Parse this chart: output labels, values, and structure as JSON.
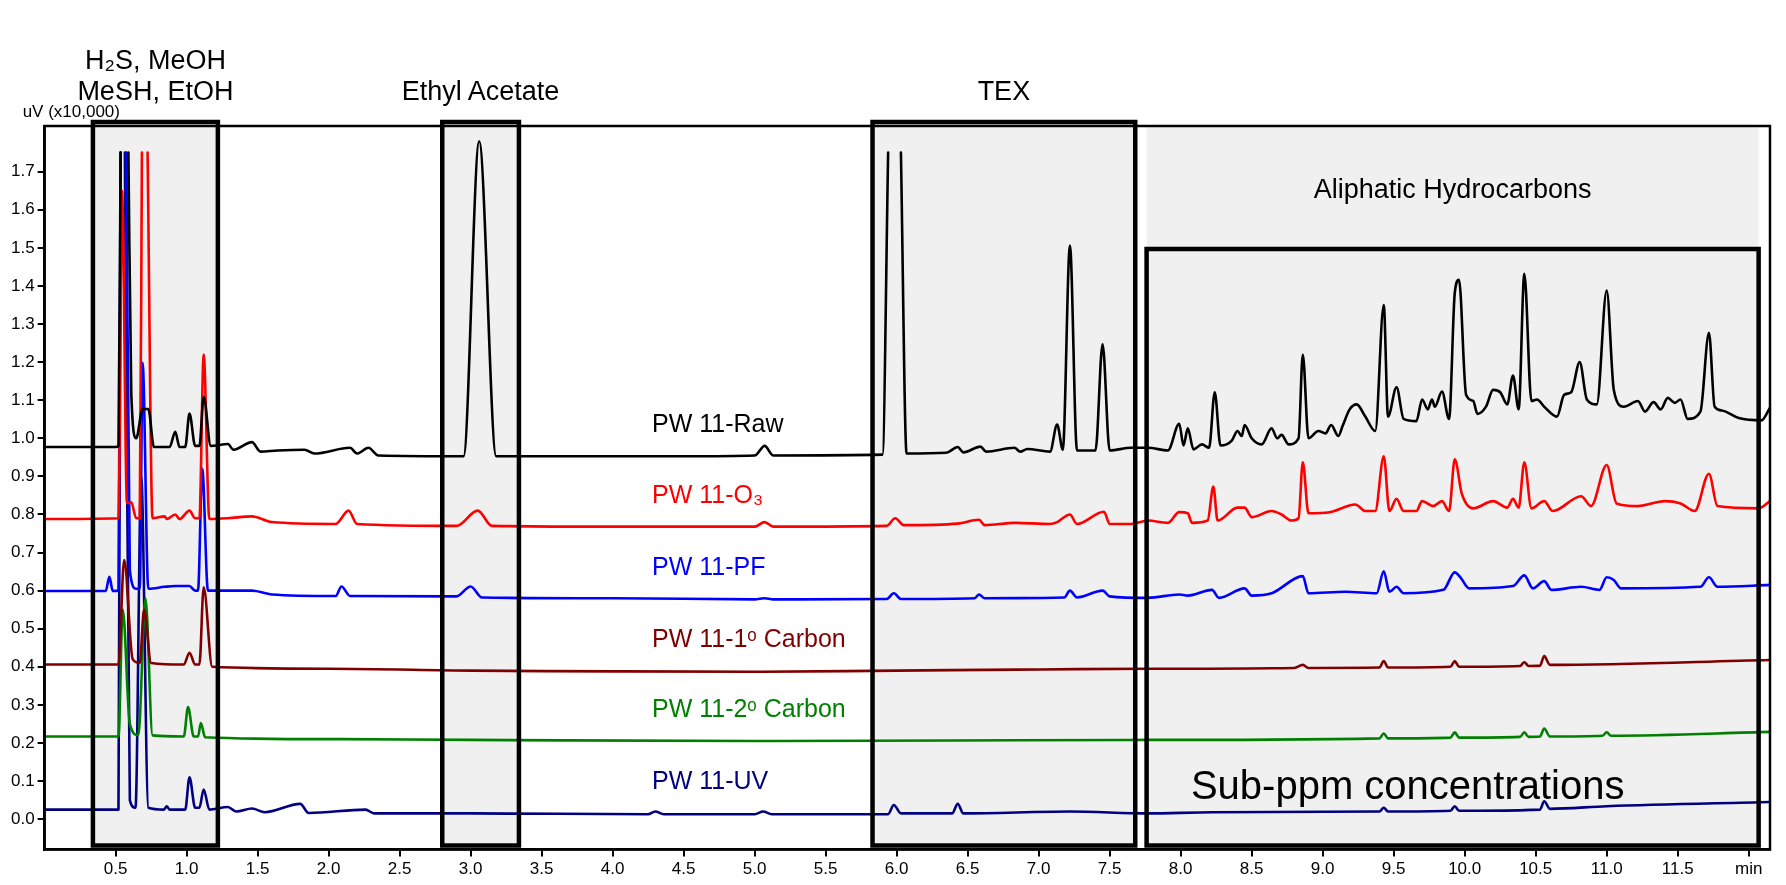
{
  "chart_data": {
    "type": "line",
    "ylabel": "uV (x10,000)",
    "xlim": [
      0,
      12.15
    ],
    "ylim": [
      -0.08,
      1.82
    ],
    "xticks": [
      {
        "value": 0.5,
        "label": "0.5"
      },
      {
        "value": 1,
        "label": "1.0"
      },
      {
        "value": 1.5,
        "label": "1.5"
      },
      {
        "value": 2,
        "label": "2.0"
      },
      {
        "value": 2.5,
        "label": "2.5"
      },
      {
        "value": 3,
        "label": "3.0"
      },
      {
        "value": 3.5,
        "label": "3.5"
      },
      {
        "value": 4,
        "label": "4.0"
      },
      {
        "value": 4.5,
        "label": "4.5"
      },
      {
        "value": 5,
        "label": "5.0"
      },
      {
        "value": 5.5,
        "label": "5.5"
      },
      {
        "value": 6,
        "label": "6.0"
      },
      {
        "value": 6.5,
        "label": "6.5"
      },
      {
        "value": 7,
        "label": "7.0"
      },
      {
        "value": 7.5,
        "label": "7.5"
      },
      {
        "value": 8,
        "label": "8.0"
      },
      {
        "value": 8.5,
        "label": "8.5"
      },
      {
        "value": 9,
        "label": "9.0"
      },
      {
        "value": 9.5,
        "label": "9.5"
      },
      {
        "value": 10,
        "label": "10.0"
      },
      {
        "value": 10.5,
        "label": "10.5"
      },
      {
        "value": 11,
        "label": "11.0"
      },
      {
        "value": 11.5,
        "label": "11.5"
      },
      {
        "value": 12,
        "label": "min"
      }
    ],
    "yticks": [
      {
        "value": 0,
        "label": "0.0"
      },
      {
        "value": 0.1,
        "label": "0.1"
      },
      {
        "value": 0.2,
        "label": "0.2"
      },
      {
        "value": 0.3,
        "label": "0.3"
      },
      {
        "value": 0.4,
        "label": "0.4"
      },
      {
        "value": 0.5,
        "label": "0.5"
      },
      {
        "value": 0.6,
        "label": "0.6"
      },
      {
        "value": 0.7,
        "label": "0.7"
      },
      {
        "value": 0.8,
        "label": "0.8"
      },
      {
        "value": 0.9,
        "label": "0.9"
      },
      {
        "value": 1,
        "label": "1.0"
      },
      {
        "value": 1.1,
        "label": "1.1"
      },
      {
        "value": 1.2,
        "label": "1.2"
      },
      {
        "value": 1.3,
        "label": "1.3"
      },
      {
        "value": 1.4,
        "label": "1.4"
      },
      {
        "value": 1.5,
        "label": "1.5"
      },
      {
        "value": 1.6,
        "label": "1.6"
      },
      {
        "value": 1.7,
        "label": "1.7"
      }
    ],
    "grid": false,
    "legend": false,
    "marker": "none",
    "line_style": "solid",
    "bands": [
      {
        "axis": "x",
        "from": 0.34,
        "to": 1.22,
        "label": "H₂S, MeOH\nMeSH, EtOH",
        "color": "#000000"
      },
      {
        "axis": "x",
        "from": 2.8,
        "to": 3.34,
        "label": "Ethyl Acetate",
        "color": "#000000"
      },
      {
        "axis": "x",
        "from": 5.83,
        "to": 7.68,
        "label": "TEX",
        "color": "#000000"
      },
      {
        "axis": "x",
        "from": 7.76,
        "to": 12.07,
        "label": "Aliphatic Hydrocarbons",
        "color": "#000000"
      }
    ],
    "annotations": [
      "Sub-ppm concentrations"
    ],
    "series": [
      {
        "name": "PW 11-Raw",
        "color": "#000000",
        "x": [
          0,
          0.5,
          0.52,
          0.535,
          0.56,
          0.59,
          0.61,
          0.645,
          0.69,
          0.73,
          0.77,
          0.88,
          0.92,
          0.95,
          0.99,
          1.02,
          1.06,
          1.09,
          1.12,
          1.17,
          1.29,
          1.33,
          1.46,
          1.52,
          1.64,
          1.83,
          1.9,
          2.15,
          2.2,
          2.28,
          2.35,
          2.95,
          3.06,
          3.18,
          3.5,
          4,
          4.5,
          5,
          5.07,
          5.13,
          5.9,
          5.94,
          5.985,
          6.03,
          6.07,
          6.35,
          6.43,
          6.47,
          6.59,
          6.63,
          6.83,
          6.87,
          6.92,
          7.08,
          7.13,
          7.17,
          7.22,
          7.27,
          7.4,
          7.45,
          7.5,
          7.65,
          7.77,
          7.91,
          7.99,
          8.02,
          8.05,
          8.09,
          8.15,
          8.2,
          8.24,
          8.28,
          8.36,
          8.4,
          8.43,
          8.45,
          8.5,
          8.57,
          8.64,
          8.68,
          8.71,
          8.76,
          8.83,
          8.86,
          8.9,
          8.97,
          9.02,
          9.06,
          9.11,
          9.14,
          9.19,
          9.24,
          9.3,
          9.37,
          9.43,
          9.46,
          9.52,
          9.57,
          9.66,
          9.7,
          9.74,
          9.77,
          9.79,
          9.84,
          9.89,
          9.93,
          9.96,
          10.01,
          10.06,
          10.09,
          10.15,
          10.2,
          10.25,
          10.3,
          10.34,
          10.38,
          10.42,
          10.47,
          10.51,
          10.56,
          10.65,
          10.7,
          10.75,
          10.81,
          10.86,
          10.93,
          11,
          11.05,
          11.12,
          11.22,
          11.27,
          11.33,
          11.38,
          11.43,
          11.48,
          11.52,
          11.57,
          11.66,
          11.72,
          11.76,
          11.81,
          11.93,
          12.09,
          12.15
        ],
        "values": [
          0.977,
          0.977,
          0.98,
          1.75,
          null,
          1.75,
          1.12,
          1.0,
          1.077,
          1.077,
          0.977,
          0.977,
          1.017,
          0.977,
          0.977,
          1.065,
          0.98,
          0.98,
          1.109,
          0.98,
          0.985,
          0.97,
          0.99,
          0.965,
          0.968,
          0.97,
          0.96,
          0.975,
          0.96,
          0.975,
          0.955,
          0.953,
          1.78,
          0.953,
          0.953,
          0.953,
          0.953,
          0.955,
          0.98,
          0.955,
          0.957,
          1.75,
          null,
          1.75,
          0.96,
          0.962,
          0.977,
          0.963,
          0.978,
          0.965,
          0.975,
          0.965,
          0.972,
          0.965,
          1.036,
          0.97,
          1.506,
          0.968,
          0.968,
          1.247,
          0.968,
          0.975,
          0.975,
          0.968,
          1.038,
          0.981,
          1.026,
          0.971,
          0.984,
          0.975,
          1.121,
          0.981,
          0.994,
          1.019,
          1.006,
          1.035,
          1.0,
          0.984,
          1.026,
          1.0,
          1.009,
          0.984,
          1.0,
          1.22,
          1.0,
          1.019,
          1.013,
          1.035,
          1.006,
          1.032,
          1.076,
          1.089,
          1.057,
          1.019,
          1.35,
          1.057,
          1.134,
          1.051,
          1.045,
          1.102,
          1.076,
          1.102,
          1.083,
          1.123,
          1.051,
          1.381,
          1.416,
          1.114,
          1.098,
          1.064,
          1.083,
          1.127,
          1.121,
          1.089,
          1.165,
          1.076,
          1.432,
          1.098,
          1.102,
          1.083,
          1.057,
          1.114,
          1.121,
          1.2,
          1.102,
          1.089,
          1.388,
          1.127,
          1.083,
          1.098,
          1.07,
          1.095,
          1.076,
          1.106,
          1.093,
          1.102,
          1.051,
          1.07,
          1.277,
          1.083,
          1.073,
          1.053,
          1.047,
          1.08
        ]
      },
      {
        "name": "PW 11-O₃",
        "color": "#ff0000",
        "x": [
          0,
          0.52,
          0.545,
          0.58,
          0.61,
          0.645,
          0.67,
          0.685,
          0.705,
          0.725,
          0.76,
          0.845,
          0.86,
          0.92,
          0.95,
          1.02,
          1.06,
          1.09,
          1.12,
          1.16,
          1.29,
          1.46,
          1.6,
          2.05,
          2.14,
          2.2,
          2.9,
          3.05,
          3.15,
          4,
          5,
          5.07,
          5.13,
          5.93,
          5.99,
          6.05,
          6.43,
          6.58,
          6.62,
          6.83,
          7.08,
          7.13,
          7.22,
          7.27,
          7.46,
          7.5,
          7.65,
          7.77,
          7.91,
          7.99,
          8.05,
          8.08,
          8.19,
          8.23,
          8.26,
          8.4,
          8.45,
          8.5,
          8.64,
          8.71,
          8.78,
          8.83,
          8.86,
          8.9,
          9.05,
          9.23,
          9.3,
          9.37,
          9.43,
          9.47,
          9.52,
          9.57,
          9.66,
          9.7,
          9.78,
          9.84,
          9.89,
          9.93,
          9.98,
          10.06,
          10.2,
          10.3,
          10.34,
          10.38,
          10.42,
          10.47,
          10.56,
          10.62,
          10.82,
          10.89,
          11,
          11.07,
          11.22,
          11.41,
          11.52,
          11.62,
          11.72,
          11.78,
          12.07,
          12.15
        ],
        "values": [
          0.788,
          0.79,
          1.65,
          0.83,
          0.832,
          0.79,
          0.79,
          1.75,
          null,
          1.75,
          0.79,
          0.795,
          0.788,
          0.8,
          0.788,
          0.81,
          0.79,
          0.79,
          1.22,
          0.788,
          0.79,
          0.795,
          0.78,
          0.775,
          0.81,
          0.775,
          0.77,
          0.81,
          0.77,
          0.768,
          0.768,
          0.78,
          0.768,
          0.77,
          0.79,
          0.772,
          0.776,
          0.786,
          0.772,
          0.778,
          0.775,
          0.78,
          0.8,
          0.775,
          0.807,
          0.775,
          0.775,
          0.784,
          0.778,
          0.806,
          0.803,
          0.778,
          0.784,
          0.873,
          0.784,
          0.818,
          0.818,
          0.793,
          0.809,
          0.8,
          0.784,
          0.79,
          0.937,
          0.803,
          0.806,
          0.826,
          0.809,
          0.809,
          0.953,
          0.809,
          0.841,
          0.809,
          0.809,
          0.835,
          0.822,
          0.835,
          0.809,
          0.945,
          0.854,
          0.816,
          0.835,
          0.818,
          0.841,
          0.818,
          0.937,
          0.816,
          0.835,
          0.809,
          0.848,
          0.822,
          0.93,
          0.829,
          0.822,
          0.835,
          0.829,
          0.809,
          0.907,
          0.822,
          0.816,
          0.835
        ]
      },
      {
        "name": "PW 11-PF",
        "color": "#0000ff",
        "x": [
          0,
          0.43,
          0.456,
          0.48,
          0.52,
          0.535,
          0.555,
          0.575,
          0.6,
          0.645,
          0.67,
          0.69,
          0.73,
          0.845,
          0.92,
          1.02,
          1.06,
          1.08,
          1.11,
          1.15,
          1.46,
          1.6,
          2.05,
          2.09,
          2.15,
          2.9,
          3.0,
          3.08,
          4,
          5,
          5.07,
          5.13,
          5.93,
          5.98,
          6.03,
          6.55,
          6.58,
          6.62,
          7.18,
          7.22,
          7.27,
          7.45,
          7.5,
          7.77,
          7.99,
          8.05,
          8.22,
          8.27,
          8.45,
          8.5,
          8.64,
          8.86,
          8.9,
          9.16,
          9.38,
          9.43,
          9.47,
          9.52,
          9.57,
          9.85,
          9.93,
          9.97,
          10.03,
          10.34,
          10.42,
          10.48,
          10.56,
          10.61,
          10.82,
          10.95,
          11,
          11.05,
          11.1,
          11.66,
          11.72,
          11.78,
          12.15
        ],
        "values": [
          0.599,
          0.599,
          0.636,
          0.599,
          0.6,
          1.75,
          null,
          1.75,
          0.653,
          0.605,
          0.605,
          1.198,
          0.605,
          0.61,
          0.612,
          0.612,
          0.6,
          0.6,
          0.92,
          0.6,
          0.6,
          0.59,
          0.586,
          0.611,
          0.586,
          0.585,
          0.611,
          0.582,
          0.58,
          0.577,
          0.58,
          0.577,
          0.578,
          0.593,
          0.578,
          0.58,
          0.59,
          0.58,
          0.582,
          0.6,
          0.582,
          0.6,
          0.585,
          0.581,
          0.59,
          0.587,
          0.602,
          0.581,
          0.606,
          0.587,
          0.593,
          0.638,
          0.593,
          0.597,
          0.593,
          0.651,
          0.597,
          0.61,
          0.593,
          0.602,
          0.648,
          0.635,
          0.606,
          0.612,
          0.64,
          0.606,
          0.625,
          0.602,
          0.61,
          0.602,
          0.635,
          0.628,
          0.606,
          0.61,
          0.635,
          0.61,
          0.615
        ]
      },
      {
        "name": "PW 11-1ᵒ Carbon",
        "color": "#800000",
        "x": [
          0,
          0.52,
          0.56,
          0.62,
          0.67,
          0.7,
          0.75,
          0.98,
          1.02,
          1.06,
          1.09,
          1.12,
          1.18,
          2,
          3,
          4,
          5,
          6,
          7,
          7.77,
          8.8,
          8.86,
          8.9,
          9.4,
          9.43,
          9.46,
          9.9,
          9.93,
          9.96,
          10.39,
          10.42,
          10.45,
          10.53,
          10.56,
          10.6,
          12.15
        ],
        "values": [
          0.406,
          0.406,
          0.68,
          0.42,
          0.41,
          0.55,
          0.41,
          0.406,
          0.437,
          0.406,
          0.406,
          0.609,
          0.4,
          0.395,
          0.39,
          0.388,
          0.387,
          0.39,
          0.393,
          0.395,
          0.397,
          0.405,
          0.397,
          0.398,
          0.415,
          0.398,
          0.4,
          0.415,
          0.4,
          0.402,
          0.412,
          0.402,
          0.403,
          0.428,
          0.405,
          0.418
        ]
      },
      {
        "name": "PW 11-2ᵒ Carbon",
        "color": "#008000",
        "x": [
          0,
          0.52,
          0.55,
          0.6,
          0.66,
          0.71,
          0.76,
          0.98,
          1.01,
          1.05,
          1.08,
          1.1,
          1.13,
          2,
          3,
          5,
          7.77,
          9.4,
          9.43,
          9.46,
          9.9,
          9.93,
          9.96,
          10.39,
          10.42,
          10.45,
          10.53,
          10.56,
          10.6,
          10.97,
          11,
          11.03,
          12.15
        ],
        "values": [
          0.217,
          0.217,
          0.55,
          0.25,
          0.22,
          0.58,
          0.22,
          0.217,
          0.294,
          0.217,
          0.217,
          0.252,
          0.215,
          0.21,
          0.208,
          0.205,
          0.208,
          0.212,
          0.225,
          0.212,
          0.214,
          0.228,
          0.214,
          0.216,
          0.228,
          0.216,
          0.217,
          0.238,
          0.217,
          0.219,
          0.228,
          0.219,
          0.229
        ]
      },
      {
        "name": "PW 11-UV",
        "color": "#000080",
        "x": [
          0,
          0.52,
          0.535,
          0.55,
          0.565,
          0.6,
          0.64,
          0.68,
          0.73,
          0.84,
          0.86,
          0.88,
          0.99,
          1.02,
          1.06,
          1.09,
          1.12,
          1.16,
          1.29,
          1.35,
          1.46,
          1.55,
          1.8,
          1.86,
          2.26,
          2.32,
          3,
          4.25,
          4.3,
          4.36,
          5,
          5.06,
          5.12,
          5.94,
          5.98,
          6.03,
          6.39,
          6.43,
          6.47,
          7.22,
          7.77,
          8.23,
          9.4,
          9.43,
          9.46,
          9.9,
          9.93,
          9.96,
          10.53,
          10.56,
          10.6,
          11,
          12.15
        ],
        "values": [
          0.025,
          0.025,
          1.75,
          null,
          1.75,
          0.05,
          0.03,
          0.9,
          0.03,
          0.025,
          0.034,
          0.025,
          0.025,
          0.11,
          0.03,
          0.03,
          0.078,
          0.025,
          0.032,
          0.02,
          0.028,
          0.018,
          0.04,
          0.016,
          0.025,
          0.015,
          0.015,
          0.013,
          0.02,
          0.013,
          0.013,
          0.02,
          0.013,
          0.013,
          0.037,
          0.015,
          0.015,
          0.04,
          0.015,
          0.02,
          0.015,
          0.018,
          0.02,
          0.03,
          0.02,
          0.022,
          0.034,
          0.022,
          0.025,
          0.047,
          0.027,
          0.034,
          0.045
        ]
      }
    ]
  }
}
